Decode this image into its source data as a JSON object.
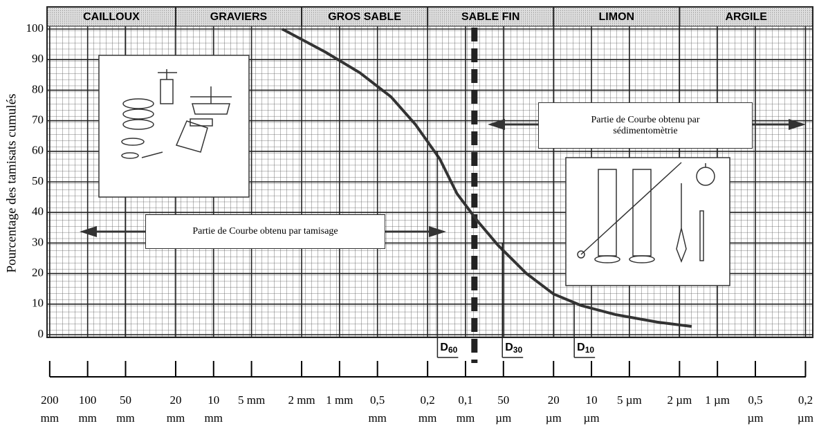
{
  "chart_data": {
    "type": "line",
    "y_label": "Pourcentage des tamisats cumulés",
    "log_x": true,
    "color": "#333333",
    "x": [
      2.85,
      1.3,
      0.69,
      0.39,
      0.25,
      0.16,
      0.117,
      0.08,
      0.055,
      0.033,
      0.02,
      0.012,
      0.0065,
      0.003,
      0.0016
    ],
    "values": [
      100,
      92.5,
      85.7,
      77.8,
      68.8,
      57.5,
      46.2,
      37.1,
      29.2,
      20.1,
      13.3,
      9.5,
      6.6,
      4.1,
      2.7
    ],
    "xlim": [
      210,
      0.000175
    ],
    "ylim": [
      0,
      100
    ],
    "yticks": [
      0,
      10,
      20,
      30,
      40,
      50,
      60,
      70,
      80,
      90,
      100
    ],
    "xticks": [
      {
        "value": 200,
        "label": "200 mm"
      },
      {
        "value": 100,
        "label": "100 mm"
      },
      {
        "value": 50,
        "label": "50 mm"
      },
      {
        "value": 20,
        "label": "20 mm"
      },
      {
        "value": 10,
        "label": "10 mm"
      },
      {
        "value": 5,
        "label": "5 mm"
      },
      {
        "value": 2,
        "label": "2 mm"
      },
      {
        "value": 1,
        "label": "1 mm"
      },
      {
        "value": 0.5,
        "label": "0,5 mm"
      },
      {
        "value": 0.2,
        "label": "0,2 mm"
      },
      {
        "value": 0.1,
        "label": "0,1 mm"
      },
      {
        "value": 0.05,
        "label": "50 µm"
      },
      {
        "value": 0.02,
        "label": "20 µm"
      },
      {
        "value": 0.01,
        "label": "10 µm"
      },
      {
        "value": 0.005,
        "label": "5 µm"
      },
      {
        "value": 0.002,
        "label": "2 µm"
      },
      {
        "value": 0.001,
        "label": "1 µm"
      },
      {
        "value": 0.0005,
        "label": "0,5 µm"
      },
      {
        "value": 0.0002,
        "label": "0,2 µm"
      }
    ],
    "grid": true,
    "zones": [
      "CAILLOUX",
      "GRAVIERS",
      "GROS SABLE",
      "SABLE FIN",
      "LIMON",
      "ARGILE"
    ],
    "zone_bounds": [
      20,
      2,
      0.2,
      0.02,
      0.002
    ],
    "divider_x": 0.085,
    "diameters": [
      {
        "label": "D",
        "subscript": "60",
        "x": 0.167
      },
      {
        "label": "D",
        "subscript": "30",
        "x": 0.051
      },
      {
        "label": "D",
        "subscript": "10",
        "x": 0.0137
      }
    ],
    "annotations": [
      "Partie de Courbe obtenu par tamisage",
      "Partie de Courbe obtenu par sédimentomètrie"
    ]
  }
}
